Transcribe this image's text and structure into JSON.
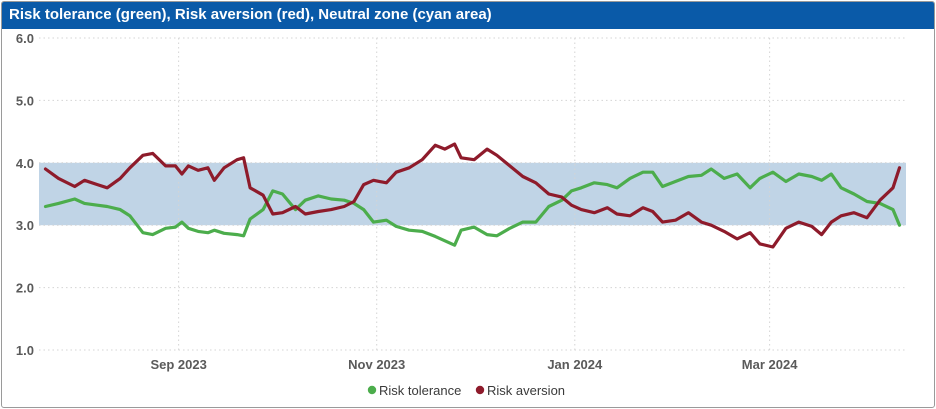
{
  "chart_data": {
    "type": "line",
    "title": "Risk tolerance (green), Risk aversion (red), Neutral zone (cyan area)",
    "xlabel": "",
    "ylabel": "",
    "ylim": [
      1.0,
      6.0
    ],
    "y_ticks": [
      "6.0",
      "5.0",
      "4.0",
      "3.0",
      "2.0",
      "1.0"
    ],
    "x_ticks": [
      {
        "label": "Sep 2023",
        "date": "2023-09-01"
      },
      {
        "label": "Nov 2023",
        "date": "2023-11-01"
      },
      {
        "label": "Jan 2024",
        "date": "2024-01-01"
      },
      {
        "label": "Mar 2024",
        "date": "2024-03-01"
      }
    ],
    "xlim": [
      "2023-07-20",
      "2024-04-12"
    ],
    "neutral_zone": {
      "low": 3.0,
      "high": 4.0,
      "color": "#c0d4e6"
    },
    "grid": true,
    "legend_position": "bottom",
    "series": [
      {
        "name": "Risk tolerance",
        "color": "#4cad4c",
        "points": [
          [
            "2023-07-22",
            3.3
          ],
          [
            "2023-07-26",
            3.35
          ],
          [
            "2023-07-31",
            3.42
          ],
          [
            "2023-08-03",
            3.35
          ],
          [
            "2023-08-07",
            3.32
          ],
          [
            "2023-08-10",
            3.3
          ],
          [
            "2023-08-14",
            3.25
          ],
          [
            "2023-08-17",
            3.15
          ],
          [
            "2023-08-21",
            2.88
          ],
          [
            "2023-08-24",
            2.85
          ],
          [
            "2023-08-28",
            2.95
          ],
          [
            "2023-08-31",
            2.97
          ],
          [
            "2023-09-02",
            3.05
          ],
          [
            "2023-09-04",
            2.95
          ],
          [
            "2023-09-07",
            2.9
          ],
          [
            "2023-09-10",
            2.88
          ],
          [
            "2023-09-12",
            2.92
          ],
          [
            "2023-09-15",
            2.87
          ],
          [
            "2023-09-19",
            2.85
          ],
          [
            "2023-09-21",
            2.83
          ],
          [
            "2023-09-23",
            3.1
          ],
          [
            "2023-09-27",
            3.25
          ],
          [
            "2023-09-30",
            3.55
          ],
          [
            "2023-10-03",
            3.5
          ],
          [
            "2023-10-07",
            3.25
          ],
          [
            "2023-10-10",
            3.4
          ],
          [
            "2023-10-14",
            3.47
          ],
          [
            "2023-10-18",
            3.42
          ],
          [
            "2023-10-22",
            3.4
          ],
          [
            "2023-10-25",
            3.35
          ],
          [
            "2023-10-28",
            3.25
          ],
          [
            "2023-10-31",
            3.05
          ],
          [
            "2023-11-04",
            3.08
          ],
          [
            "2023-11-07",
            2.98
          ],
          [
            "2023-11-11",
            2.92
          ],
          [
            "2023-11-15",
            2.9
          ],
          [
            "2023-11-19",
            2.82
          ],
          [
            "2023-11-22",
            2.75
          ],
          [
            "2023-11-25",
            2.68
          ],
          [
            "2023-11-27",
            2.92
          ],
          [
            "2023-12-01",
            2.97
          ],
          [
            "2023-12-05",
            2.85
          ],
          [
            "2023-12-08",
            2.83
          ],
          [
            "2023-12-12",
            2.95
          ],
          [
            "2023-12-16",
            3.05
          ],
          [
            "2023-12-20",
            3.05
          ],
          [
            "2023-12-24",
            3.3
          ],
          [
            "2023-12-28",
            3.4
          ],
          [
            "2023-12-31",
            3.55
          ],
          [
            "2024-01-03",
            3.6
          ],
          [
            "2024-01-07",
            3.68
          ],
          [
            "2024-01-11",
            3.65
          ],
          [
            "2024-01-14",
            3.6
          ],
          [
            "2024-01-18",
            3.75
          ],
          [
            "2024-01-22",
            3.85
          ],
          [
            "2024-01-25",
            3.85
          ],
          [
            "2024-01-28",
            3.62
          ],
          [
            "2024-02-01",
            3.7
          ],
          [
            "2024-02-05",
            3.78
          ],
          [
            "2024-02-09",
            3.8
          ],
          [
            "2024-02-12",
            3.9
          ],
          [
            "2024-02-16",
            3.75
          ],
          [
            "2024-02-20",
            3.82
          ],
          [
            "2024-02-24",
            3.6
          ],
          [
            "2024-02-27",
            3.75
          ],
          [
            "2024-03-02",
            3.85
          ],
          [
            "2024-03-06",
            3.7
          ],
          [
            "2024-03-10",
            3.82
          ],
          [
            "2024-03-14",
            3.78
          ],
          [
            "2024-03-17",
            3.72
          ],
          [
            "2024-03-20",
            3.82
          ],
          [
            "2024-03-23",
            3.6
          ],
          [
            "2024-03-27",
            3.5
          ],
          [
            "2024-03-31",
            3.38
          ],
          [
            "2024-04-04",
            3.35
          ],
          [
            "2024-04-08",
            3.25
          ],
          [
            "2024-04-10",
            3.0
          ]
        ]
      },
      {
        "name": "Risk aversion",
        "color": "#8e1b2b",
        "points": [
          [
            "2023-07-22",
            3.9
          ],
          [
            "2023-07-26",
            3.75
          ],
          [
            "2023-07-31",
            3.62
          ],
          [
            "2023-08-03",
            3.72
          ],
          [
            "2023-08-07",
            3.65
          ],
          [
            "2023-08-10",
            3.6
          ],
          [
            "2023-08-14",
            3.75
          ],
          [
            "2023-08-17",
            3.92
          ],
          [
            "2023-08-21",
            4.12
          ],
          [
            "2023-08-24",
            4.15
          ],
          [
            "2023-08-28",
            3.95
          ],
          [
            "2023-08-31",
            3.95
          ],
          [
            "2023-09-02",
            3.82
          ],
          [
            "2023-09-04",
            3.95
          ],
          [
            "2023-09-07",
            3.88
          ],
          [
            "2023-09-10",
            3.92
          ],
          [
            "2023-09-12",
            3.72
          ],
          [
            "2023-09-15",
            3.92
          ],
          [
            "2023-09-19",
            4.05
          ],
          [
            "2023-09-21",
            4.08
          ],
          [
            "2023-09-23",
            3.6
          ],
          [
            "2023-09-27",
            3.48
          ],
          [
            "2023-09-30",
            3.18
          ],
          [
            "2023-10-03",
            3.2
          ],
          [
            "2023-10-07",
            3.3
          ],
          [
            "2023-10-10",
            3.18
          ],
          [
            "2023-10-14",
            3.22
          ],
          [
            "2023-10-18",
            3.25
          ],
          [
            "2023-10-22",
            3.3
          ],
          [
            "2023-10-25",
            3.38
          ],
          [
            "2023-10-28",
            3.65
          ],
          [
            "2023-10-31",
            3.72
          ],
          [
            "2023-11-04",
            3.68
          ],
          [
            "2023-11-07",
            3.85
          ],
          [
            "2023-11-11",
            3.92
          ],
          [
            "2023-11-15",
            4.05
          ],
          [
            "2023-11-19",
            4.28
          ],
          [
            "2023-11-22",
            4.22
          ],
          [
            "2023-11-25",
            4.3
          ],
          [
            "2023-11-27",
            4.08
          ],
          [
            "2023-12-01",
            4.05
          ],
          [
            "2023-12-05",
            4.22
          ],
          [
            "2023-12-08",
            4.12
          ],
          [
            "2023-12-12",
            3.95
          ],
          [
            "2023-12-16",
            3.78
          ],
          [
            "2023-12-20",
            3.68
          ],
          [
            "2023-12-24",
            3.5
          ],
          [
            "2023-12-28",
            3.45
          ],
          [
            "2023-12-31",
            3.32
          ],
          [
            "2024-01-03",
            3.25
          ],
          [
            "2024-01-07",
            3.2
          ],
          [
            "2024-01-11",
            3.28
          ],
          [
            "2024-01-14",
            3.18
          ],
          [
            "2024-01-18",
            3.15
          ],
          [
            "2024-01-22",
            3.28
          ],
          [
            "2024-01-25",
            3.22
          ],
          [
            "2024-01-28",
            3.05
          ],
          [
            "2024-02-01",
            3.08
          ],
          [
            "2024-02-05",
            3.2
          ],
          [
            "2024-02-09",
            3.05
          ],
          [
            "2024-02-12",
            3.0
          ],
          [
            "2024-02-16",
            2.9
          ],
          [
            "2024-02-20",
            2.78
          ],
          [
            "2024-02-24",
            2.88
          ],
          [
            "2024-02-27",
            2.7
          ],
          [
            "2024-03-02",
            2.65
          ],
          [
            "2024-03-06",
            2.95
          ],
          [
            "2024-03-10",
            3.05
          ],
          [
            "2024-03-14",
            2.98
          ],
          [
            "2024-03-17",
            2.85
          ],
          [
            "2024-03-20",
            3.05
          ],
          [
            "2024-03-23",
            3.15
          ],
          [
            "2024-03-27",
            3.2
          ],
          [
            "2024-03-31",
            3.12
          ],
          [
            "2024-04-04",
            3.4
          ],
          [
            "2024-04-08",
            3.6
          ],
          [
            "2024-04-10",
            3.92
          ]
        ]
      }
    ]
  }
}
